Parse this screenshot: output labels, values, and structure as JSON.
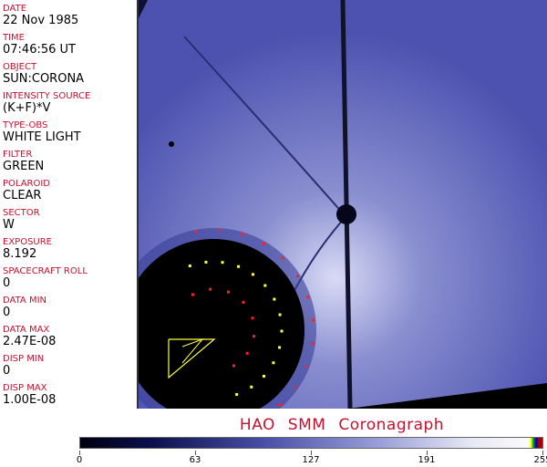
{
  "header": [
    {
      "label": "DATE",
      "value": "22 Nov 1985"
    },
    {
      "label": "TIME",
      "value": "07:46:56 UT"
    },
    {
      "label": "OBJECT",
      "value": "SUN:CORONA"
    },
    {
      "label": "INTENSITY SOURCE",
      "value": "(K+F)*V"
    },
    {
      "label": "TYPE-OBS",
      "value": "WHITE LIGHT"
    },
    {
      "label": "FILTER",
      "value": "GREEN"
    },
    {
      "label": "POLAROID",
      "value": "CLEAR"
    },
    {
      "label": "SECTOR",
      "value": "W"
    },
    {
      "label": "EXPOSURE",
      "value": "8.192"
    },
    {
      "label": "SPACECRAFT ROLL",
      "value": "0"
    },
    {
      "label": "DATA MIN",
      "value": "0"
    },
    {
      "label": "DATA MAX",
      "value": "2.47E-08"
    },
    {
      "label": "DISP MIN",
      "value": "0"
    },
    {
      "label": "DISP MAX",
      "value": "1.00E-08"
    }
  ],
  "title": "HAO SMM Coronagraph",
  "colorbar": {
    "ticks": [
      "0",
      "63",
      "127",
      "191",
      "255"
    ],
    "min": 0,
    "max": 255
  },
  "colors": {
    "label": "#c8102e",
    "marker_red": "#ff2020",
    "marker_yellow": "#ffff40"
  }
}
